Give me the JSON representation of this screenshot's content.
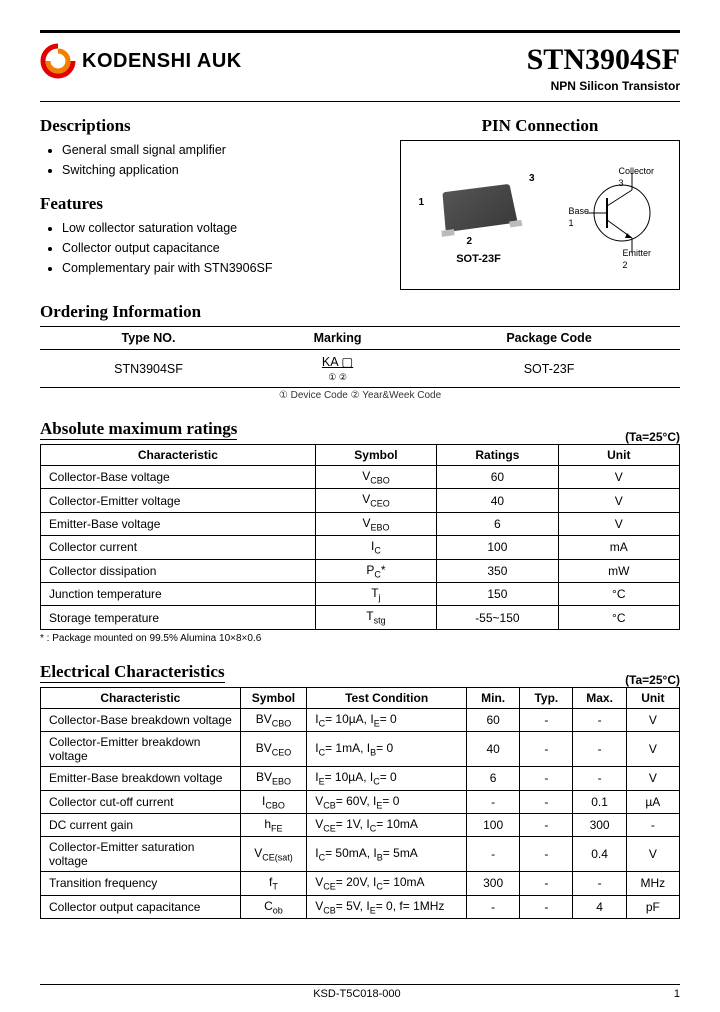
{
  "header": {
    "company": "KODENSHI AUK",
    "part_number": "STN3904SF",
    "subtitle": "NPN Silicon Transistor"
  },
  "descriptions": {
    "title": "Descriptions",
    "items": [
      "General small signal amplifier",
      "Switching application"
    ]
  },
  "features": {
    "title": "Features",
    "items": [
      "Low collector saturation voltage",
      "Collector output capacitance",
      "Complementary pair with STN3906SF"
    ]
  },
  "pin": {
    "title": "PIN Connection",
    "package": "SOT-23F",
    "pins": {
      "1": "Base",
      "2": "Emitter",
      "3": "Collector"
    }
  },
  "ordering": {
    "title": "Ordering Information",
    "headers": [
      "Type NO.",
      "Marking",
      "Package Code"
    ],
    "row": {
      "type": "STN3904SF",
      "marking": "KA ▢",
      "package": "SOT-23F"
    },
    "note": "① Device Code ② Year&Week Code"
  },
  "abs_max": {
    "title": "Absolute maximum ratings",
    "ta": "(Ta=25°C)",
    "headers": [
      "Characteristic",
      "Symbol",
      "Ratings",
      "Unit"
    ],
    "rows": [
      [
        "Collector-Base voltage",
        "V_CBO",
        "60",
        "V"
      ],
      [
        "Collector-Emitter voltage",
        "V_CEO",
        "40",
        "V"
      ],
      [
        "Emitter-Base voltage",
        "V_EBO",
        "6",
        "V"
      ],
      [
        "Collector current",
        "I_C",
        "100",
        "mA"
      ],
      [
        "Collector dissipation",
        "P_C*",
        "350",
        "mW"
      ],
      [
        "Junction temperature",
        "T_j",
        "150",
        "°C"
      ],
      [
        "Storage temperature",
        "T_stg",
        "-55~150",
        "°C"
      ]
    ],
    "footnote": "* : Package mounted on 99.5% Alumina 10×8×0.6"
  },
  "elec": {
    "title": "Electrical Characteristics",
    "ta": "(Ta=25°C)",
    "headers": [
      "Characteristic",
      "Symbol",
      "Test Condition",
      "Min.",
      "Typ.",
      "Max.",
      "Unit"
    ],
    "rows": [
      [
        "Collector-Base breakdown voltage",
        "BV_CBO",
        "I_C= 10µA, I_E= 0",
        "60",
        "-",
        "-",
        "V"
      ],
      [
        "Collector-Emitter breakdown voltage",
        "BV_CEO",
        "I_C= 1mA, I_B= 0",
        "40",
        "-",
        "-",
        "V"
      ],
      [
        "Emitter-Base breakdown voltage",
        "BV_EBO",
        "I_E= 10µA, I_C= 0",
        "6",
        "-",
        "-",
        "V"
      ],
      [
        "Collector cut-off current",
        "I_CBO",
        "V_CB= 60V, I_E= 0",
        "-",
        "-",
        "0.1",
        "µA"
      ],
      [
        "DC current gain",
        "h_FE",
        "V_CE= 1V, I_C= 10mA",
        "100",
        "-",
        "300",
        "-"
      ],
      [
        "Collector-Emitter saturation voltage",
        "V_CE(sat)",
        "I_C= 50mA, I_B= 5mA",
        "-",
        "-",
        "0.4",
        "V"
      ],
      [
        "Transition frequency",
        "f_T",
        "V_CE= 20V, I_C= 10mA",
        "300",
        "-",
        "-",
        "MHz"
      ],
      [
        "Collector output capacitance",
        "C_ob",
        "V_CB= 5V, I_E= 0, f= 1MHz",
        "-",
        "-",
        "4",
        "pF"
      ]
    ]
  },
  "footer": {
    "doc": "KSD-T5C018-000",
    "page": "1"
  }
}
